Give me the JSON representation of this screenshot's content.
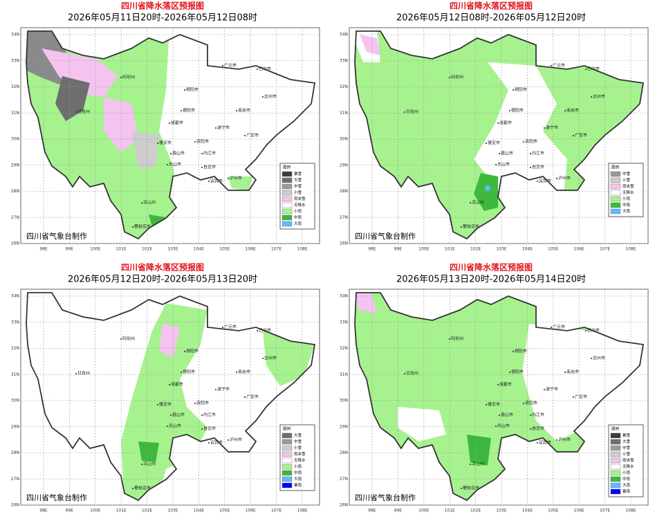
{
  "panels": [
    {
      "title": "四川省降水落区预报图",
      "subtitle": "2026年05月11日20时-2026年05月12日08时",
      "legend": {
        "title": "图例",
        "items": [
          {
            "label": "暴雪",
            "color": "#3c3c3c"
          },
          {
            "label": "大雪",
            "color": "#6e6e6e"
          },
          {
            "label": "中雪",
            "color": "#9a9a9a"
          },
          {
            "label": "小雪",
            "color": "#cdcdcd"
          },
          {
            "label": "雨夹雪",
            "color": "#f5c3f0"
          },
          {
            "label": "无降水",
            "color": "#ffffff"
          },
          {
            "label": "小雨",
            "color": "#a6f28f"
          },
          {
            "label": "中雨",
            "color": "#3cb93c"
          },
          {
            "label": "大雨",
            "color": "#61b8ff"
          }
        ]
      }
    },
    {
      "title": "四川省降水落区预报图",
      "subtitle": "2026年05月12日08时-2026年05月12日20时",
      "legend": {
        "title": "图例",
        "items": [
          {
            "label": "中雪",
            "color": "#9a9a9a"
          },
          {
            "label": "小雪",
            "color": "#cdcdcd"
          },
          {
            "label": "雨夹雪",
            "color": "#f5c3f0"
          },
          {
            "label": "无降水",
            "color": "#ffffff"
          },
          {
            "label": "小雨",
            "color": "#a6f28f"
          },
          {
            "label": "中雨",
            "color": "#3cb93c"
          },
          {
            "label": "大雨",
            "color": "#61b8ff"
          }
        ]
      }
    },
    {
      "title": "四川省降水落区预报图",
      "subtitle": "2026年05月12日20时-2026年05月13日20时",
      "legend": {
        "title": "图例",
        "items": [
          {
            "label": "大雪",
            "color": "#6e6e6e"
          },
          {
            "label": "中雪",
            "color": "#9a9a9a"
          },
          {
            "label": "小雪",
            "color": "#cdcdcd"
          },
          {
            "label": "雨夹雪",
            "color": "#f5c3f0"
          },
          {
            "label": "无降水",
            "color": "#ffffff"
          },
          {
            "label": "小雨",
            "color": "#a6f28f"
          },
          {
            "label": "中雨",
            "color": "#3cb93c"
          },
          {
            "label": "大雨",
            "color": "#61b8ff"
          },
          {
            "label": "暴雨",
            "color": "#0000fe"
          }
        ]
      }
    },
    {
      "title": "四川省降水落区预报图",
      "subtitle": "2026年05月13日20时-2026年05月14日20时",
      "legend": {
        "title": "图例",
        "items": [
          {
            "label": "暴雪",
            "color": "#3c3c3c"
          },
          {
            "label": "大雪",
            "color": "#6e6e6e"
          },
          {
            "label": "中雪",
            "color": "#9a9a9a"
          },
          {
            "label": "小雪",
            "color": "#cdcdcd"
          },
          {
            "label": "雨夹雪",
            "color": "#f5c3f0"
          },
          {
            "label": "无降水",
            "color": "#ffffff"
          },
          {
            "label": "小雨",
            "color": "#a6f28f"
          },
          {
            "label": "中雨",
            "color": "#3cb93c"
          },
          {
            "label": "大雨",
            "color": "#61b8ff"
          },
          {
            "label": "暴雨",
            "color": "#0000fe"
          }
        ]
      }
    }
  ],
  "credit": "四川省气象台制作",
  "lat_labels": [
    "34N",
    "33N",
    "32N",
    "31N",
    "30N",
    "29N",
    "28N",
    "27N",
    "26N"
  ],
  "lon_labels": [
    "98E",
    "99E",
    "100E",
    "101E",
    "102E",
    "103E",
    "104E",
    "105E",
    "106E",
    "107E",
    "108E"
  ],
  "cities": [
    "阿坝州",
    "甘孜州",
    "凉山州",
    "攀枝花市",
    "成都市",
    "雅安市",
    "眉山市",
    "乐山市",
    "宜宾市",
    "泸州市",
    "自贡市",
    "内江市",
    "资阳市",
    "遂宁市",
    "南充市",
    "德阳市",
    "绵阳市",
    "广元市",
    "巴中市",
    "达州市",
    "广安市"
  ]
}
